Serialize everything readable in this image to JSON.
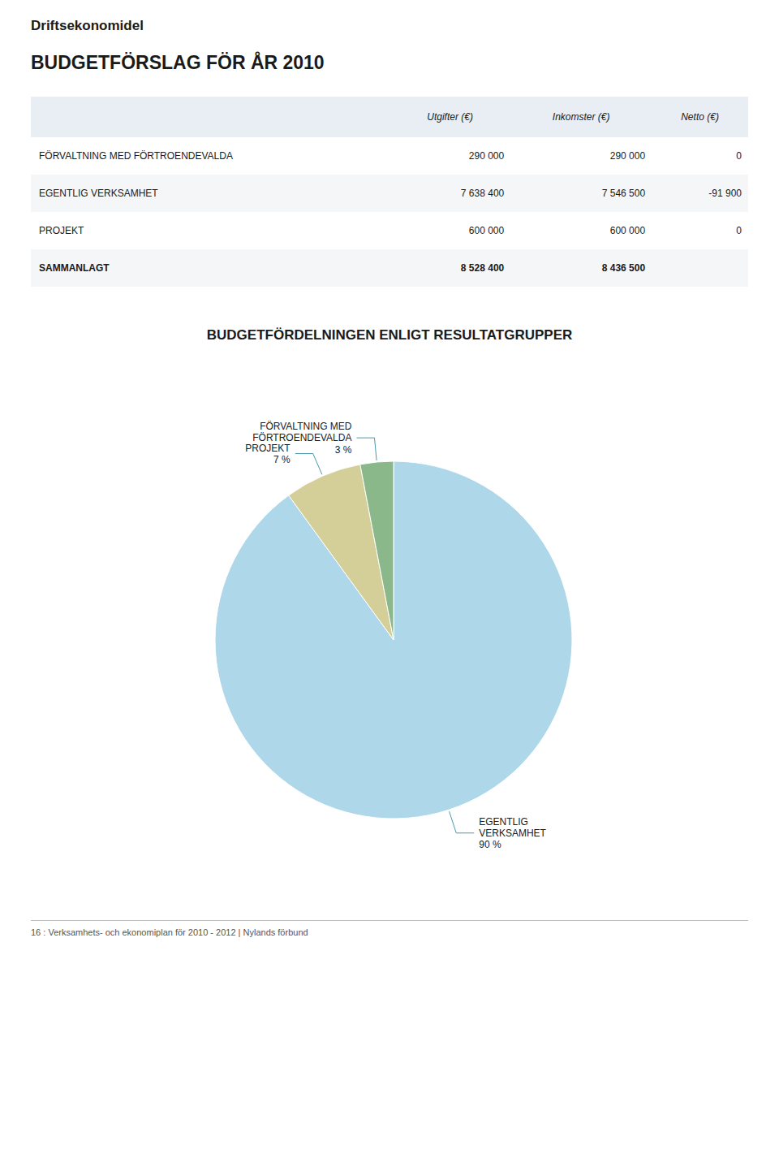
{
  "chart_data": [
    {
      "type": "table",
      "subtitle": "Driftsekonomidel",
      "title": "BUDGETFÖRSLAG FÖR ÅR 2010",
      "categories": [
        "FÖRVALTNING MED FÖRTROENDEVALDA",
        "EGENTLIG VERKSAMHET",
        "PROJEKT",
        "SAMMANLAGT"
      ],
      "series": [
        {
          "name": "Utgifter (€)",
          "values": [
            290000,
            7638400,
            600000,
            8528400
          ],
          "value_labels": [
            "290 000",
            "7 638 400",
            "600 000",
            "8 528 400"
          ]
        },
        {
          "name": "Inkomster (€)",
          "values": [
            290000,
            7546500,
            600000,
            8436500
          ],
          "value_labels": [
            "290 000",
            "7 546 500",
            "600 000",
            "8 436 500"
          ]
        },
        {
          "name": "Netto (€)",
          "values": [
            0,
            -91900,
            0,
            null
          ],
          "value_labels": [
            "0",
            "-91 900",
            "0",
            null
          ]
        }
      ]
    },
    {
      "type": "pie",
      "title": "BUDGETFÖRDELNINGEN ENLIGT RESULTATGRUPPER",
      "categories": [
        "EGENTLIG\nVERKSAMHET",
        "PROJEKT",
        "FÖRVALTNING MED\nFÖRTROENDEVALDA"
      ],
      "values": [
        90,
        7,
        3
      ],
      "value_labels": [
        "90 %",
        "7 %",
        "3 %"
      ],
      "colors": [
        "#aed8ea",
        "#d4cf98",
        "#8ab88a"
      ],
      "data_labels": true,
      "annotations": [
        "16   :   Verksamhets- och ekonomiplan för 2010 - 2012  |  Nylands förbund"
      ]
    }
  ]
}
